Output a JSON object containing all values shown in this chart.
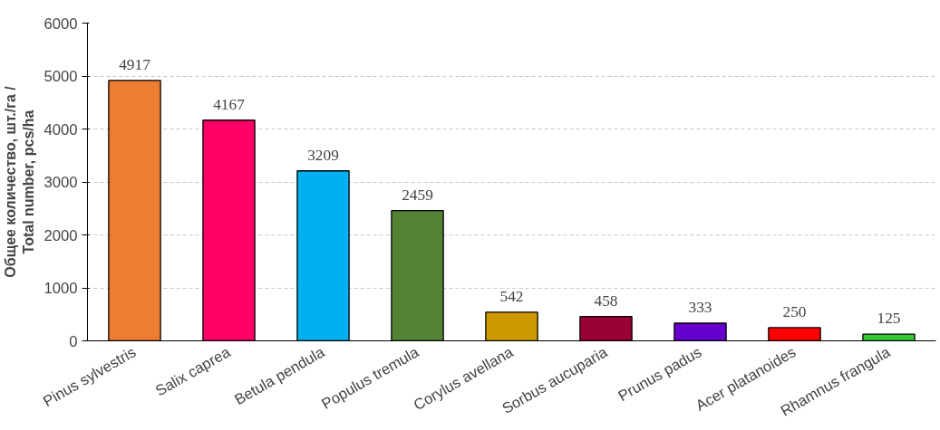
{
  "chart_data": {
    "type": "bar",
    "ylabel": "Общее количество, шт./га /\nTotal number, pcs/ha",
    "categories": [
      "Pinus sylvestris",
      "Salix caprea",
      "Betula pendula",
      "Populus tremula",
      "Corylus avellana",
      "Sorbus aucuparia",
      "Prunus padus",
      "Acer platanoides",
      "Rhamnus frangula"
    ],
    "values": [
      4917,
      4167,
      3209,
      2459,
      542,
      458,
      333,
      250,
      125
    ],
    "colors": [
      "#ed7d31",
      "#ff0066",
      "#00b0f0",
      "#548235",
      "#cc9900",
      "#990033",
      "#6600cc",
      "#ff0000",
      "#33cc33"
    ],
    "ylim": [
      0,
      6000
    ],
    "yticks": [
      0,
      1000,
      2000,
      3000,
      4000,
      5000,
      6000
    ],
    "grid": "y",
    "data_labels": true
  }
}
